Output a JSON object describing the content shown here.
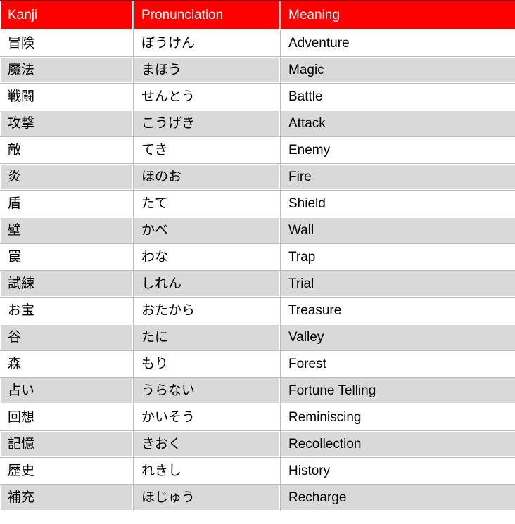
{
  "table": {
    "columns": [
      "Kanji",
      "Pronunciation",
      "Meaning"
    ],
    "rows": [
      {
        "kanji": "冒険",
        "pronunciation": "ぼうけん",
        "meaning": "Adventure"
      },
      {
        "kanji": "魔法",
        "pronunciation": "まほう",
        "meaning": "Magic"
      },
      {
        "kanji": "戦闘",
        "pronunciation": "せんとう",
        "meaning": "Battle"
      },
      {
        "kanji": "攻撃",
        "pronunciation": "こうげき",
        "meaning": "Attack"
      },
      {
        "kanji": "敵",
        "pronunciation": "てき",
        "meaning": "Enemy"
      },
      {
        "kanji": "炎",
        "pronunciation": "ほのお",
        "meaning": "Fire"
      },
      {
        "kanji": "盾",
        "pronunciation": "たて",
        "meaning": "Shield"
      },
      {
        "kanji": "壁",
        "pronunciation": "かべ",
        "meaning": "Wall"
      },
      {
        "kanji": "罠",
        "pronunciation": "わな",
        "meaning": "Trap"
      },
      {
        "kanji": "試練",
        "pronunciation": "しれん",
        "meaning": "Trial"
      },
      {
        "kanji": "お宝",
        "pronunciation": "おたから",
        "meaning": "Treasure"
      },
      {
        "kanji": "谷",
        "pronunciation": "たに",
        "meaning": "Valley"
      },
      {
        "kanji": "森",
        "pronunciation": "もり",
        "meaning": "Forest"
      },
      {
        "kanji": "占い",
        "pronunciation": "うらない",
        "meaning": "Fortune Telling"
      },
      {
        "kanji": "回想",
        "pronunciation": "かいそう",
        "meaning": "Reminiscing"
      },
      {
        "kanji": "記憶",
        "pronunciation": "きおく",
        "meaning": "Recollection"
      },
      {
        "kanji": "歴史",
        "pronunciation": "れきし",
        "meaning": "History"
      },
      {
        "kanji": "補充",
        "pronunciation": "ほじゅう",
        "meaning": "Recharge"
      }
    ]
  },
  "colors": {
    "header_bg": "#ff0000",
    "header_top_border": "#a00000",
    "header_text": "#ffffff",
    "row_bg": "#ffffff",
    "alt_row_bg": "#d9d9d9",
    "gridline": "#bdbdbd",
    "text": "#000000"
  }
}
